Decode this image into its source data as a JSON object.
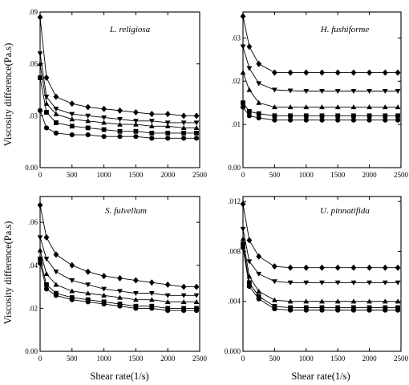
{
  "figure": {
    "ylabel": "Viscosity difference(Pa.s)",
    "xlabel": "Shear rate(1/s)"
  },
  "chart_data": [
    {
      "type": "line",
      "title": "L. religiosa",
      "xlim": [
        0,
        2500
      ],
      "ylim": [
        0,
        0.09
      ],
      "xticks": [
        "0",
        "500",
        "1000",
        "1500",
        "2000",
        "2500"
      ],
      "yticks": [
        "0.00",
        ".03",
        ".06",
        ".09"
      ],
      "x": [
        0,
        100,
        250,
        500,
        750,
        1000,
        1250,
        1500,
        1750,
        2000,
        2250,
        2450
      ],
      "series": [
        {
          "marker": "diamond",
          "values": [
            0.087,
            0.052,
            0.041,
            0.037,
            0.035,
            0.034,
            0.033,
            0.032,
            0.031,
            0.031,
            0.03,
            0.03
          ]
        },
        {
          "marker": "triangle-down",
          "values": [
            0.066,
            0.041,
            0.034,
            0.031,
            0.03,
            0.029,
            0.028,
            0.027,
            0.027,
            0.026,
            0.026,
            0.026
          ]
        },
        {
          "marker": "triangle-up",
          "values": [
            0.06,
            0.037,
            0.031,
            0.028,
            0.027,
            0.026,
            0.025,
            0.025,
            0.024,
            0.024,
            0.023,
            0.023
          ]
        },
        {
          "marker": "square",
          "values": [
            0.052,
            0.032,
            0.026,
            0.024,
            0.023,
            0.022,
            0.021,
            0.021,
            0.02,
            0.02,
            0.02,
            0.02
          ]
        },
        {
          "marker": "circle",
          "values": [
            0.033,
            0.023,
            0.02,
            0.019,
            0.019,
            0.018,
            0.018,
            0.018,
            0.017,
            0.017,
            0.017,
            0.017
          ]
        }
      ]
    },
    {
      "type": "line",
      "title": "H. fushiforme",
      "xlim": [
        0,
        2500
      ],
      "ylim": [
        0,
        0.036
      ],
      "xticks": [
        "0",
        "500",
        "1000",
        "1500",
        "2000",
        "2500"
      ],
      "yticks": [
        "0.00",
        ".01",
        ".02",
        ".03"
      ],
      "x": [
        0,
        100,
        250,
        500,
        750,
        1000,
        1250,
        1500,
        1750,
        2000,
        2250,
        2450
      ],
      "series": [
        {
          "marker": "diamond",
          "values": [
            0.035,
            0.028,
            0.024,
            0.022,
            0.022,
            0.022,
            0.022,
            0.022,
            0.022,
            0.022,
            0.022,
            0.022
          ]
        },
        {
          "marker": "triangle-down",
          "values": [
            0.028,
            0.023,
            0.0195,
            0.018,
            0.0178,
            0.0177,
            0.0177,
            0.0177,
            0.0177,
            0.0177,
            0.0177,
            0.0177
          ]
        },
        {
          "marker": "triangle-up",
          "values": [
            0.022,
            0.018,
            0.015,
            0.014,
            0.014,
            0.014,
            0.014,
            0.014,
            0.014,
            0.014,
            0.014,
            0.014
          ]
        },
        {
          "marker": "square",
          "values": [
            0.015,
            0.013,
            0.0125,
            0.012,
            0.012,
            0.012,
            0.012,
            0.012,
            0.012,
            0.012,
            0.012,
            0.012
          ]
        },
        {
          "marker": "circle",
          "values": [
            0.014,
            0.012,
            0.0115,
            0.011,
            0.011,
            0.011,
            0.011,
            0.011,
            0.011,
            0.011,
            0.011,
            0.011
          ]
        }
      ]
    },
    {
      "type": "line",
      "title": "S. fulvellum",
      "xlim": [
        0,
        2500
      ],
      "ylim": [
        0,
        0.072
      ],
      "xticks": [
        "0",
        "500",
        "1000",
        "1500",
        "2000",
        "2500"
      ],
      "yticks": [
        "0.00",
        ".02",
        ".04",
        ".06"
      ],
      "x": [
        0,
        100,
        250,
        500,
        750,
        1000,
        1250,
        1500,
        1750,
        2000,
        2250,
        2450
      ],
      "series": [
        {
          "marker": "diamond",
          "values": [
            0.068,
            0.053,
            0.045,
            0.04,
            0.037,
            0.035,
            0.034,
            0.033,
            0.032,
            0.031,
            0.03,
            0.03
          ]
        },
        {
          "marker": "triangle-down",
          "values": [
            0.053,
            0.043,
            0.037,
            0.033,
            0.031,
            0.029,
            0.028,
            0.027,
            0.027,
            0.026,
            0.026,
            0.026
          ]
        },
        {
          "marker": "triangle-up",
          "values": [
            0.047,
            0.036,
            0.031,
            0.028,
            0.027,
            0.026,
            0.025,
            0.024,
            0.024,
            0.023,
            0.023,
            0.023
          ]
        },
        {
          "marker": "square",
          "values": [
            0.043,
            0.031,
            0.027,
            0.025,
            0.024,
            0.023,
            0.022,
            0.021,
            0.021,
            0.02,
            0.02,
            0.02
          ]
        },
        {
          "marker": "circle",
          "values": [
            0.041,
            0.029,
            0.026,
            0.024,
            0.023,
            0.022,
            0.021,
            0.02,
            0.02,
            0.019,
            0.019,
            0.019
          ]
        }
      ]
    },
    {
      "type": "line",
      "title": "U. pinnatifida",
      "xlim": [
        0,
        2500
      ],
      "ylim": [
        0,
        0.0124
      ],
      "xticks": [
        "0",
        "500",
        "1000",
        "1500",
        "2000",
        "2500"
      ],
      "yticks": [
        "0.000",
        ".004",
        ".008",
        ".012"
      ],
      "x": [
        0,
        100,
        250,
        500,
        750,
        1000,
        1250,
        1500,
        1750,
        2000,
        2250,
        2450
      ],
      "series": [
        {
          "marker": "diamond",
          "values": [
            0.0118,
            0.0089,
            0.0076,
            0.0068,
            0.0067,
            0.0067,
            0.0067,
            0.0067,
            0.0067,
            0.0067,
            0.0067,
            0.0067
          ]
        },
        {
          "marker": "triangle-down",
          "values": [
            0.0098,
            0.0072,
            0.0062,
            0.0056,
            0.0055,
            0.0055,
            0.0055,
            0.0055,
            0.0055,
            0.0055,
            0.0055,
            0.0055
          ]
        },
        {
          "marker": "triangle-up",
          "values": [
            0.009,
            0.006,
            0.0048,
            0.0041,
            0.004,
            0.004,
            0.004,
            0.004,
            0.004,
            0.004,
            0.004,
            0.004
          ]
        },
        {
          "marker": "square",
          "values": [
            0.0086,
            0.0055,
            0.0044,
            0.0036,
            0.0035,
            0.0035,
            0.0035,
            0.0035,
            0.0035,
            0.0035,
            0.0035,
            0.0035
          ]
        },
        {
          "marker": "circle",
          "values": [
            0.0083,
            0.0052,
            0.0042,
            0.0034,
            0.0033,
            0.0033,
            0.0033,
            0.0033,
            0.0033,
            0.0033,
            0.0033,
            0.0033
          ]
        }
      ]
    }
  ]
}
